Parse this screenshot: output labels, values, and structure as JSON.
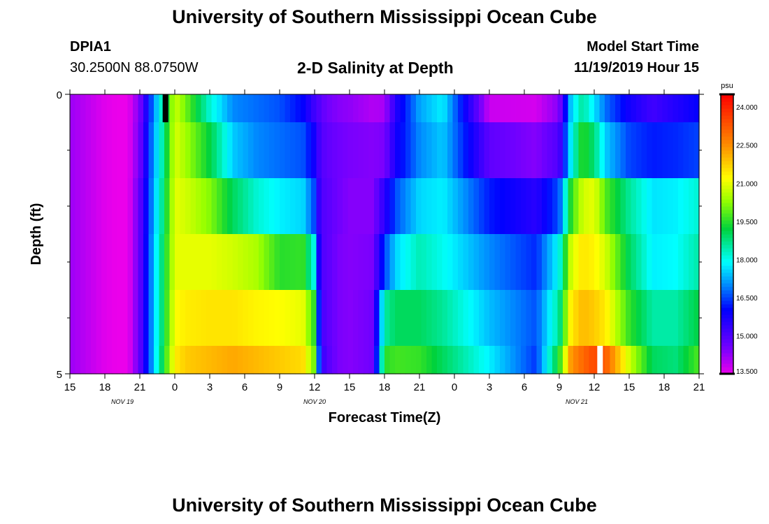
{
  "page": {
    "title": "University of Southern Mississippi Ocean Cube",
    "footer_title": "University of Southern Mississippi Ocean Cube",
    "station_id": "DPIA1",
    "station_coords": "30.2500N 88.0750W",
    "plot_title": "2-D Salinity at Depth",
    "model_start_label": "Model Start Time",
    "model_start_value": "11/19/2019 Hour 15"
  },
  "chart_data": {
    "type": "heatmap",
    "title": "2-D Salinity at Depth",
    "xlabel": "Forecast Time(Z)",
    "ylabel": "Depth (ft)",
    "x_tick_labels": [
      "15",
      "18",
      "21",
      "0",
      "3",
      "6",
      "9",
      "12",
      "15",
      "18",
      "21",
      "0",
      "3",
      "6",
      "9",
      "12",
      "15",
      "18",
      "21"
    ],
    "x_range_hours": [
      0,
      54
    ],
    "date_labels": [
      {
        "text": "NOV 19",
        "hour": 4.5
      },
      {
        "text": "NOV 20",
        "hour": 21
      },
      {
        "text": "NOV 21",
        "hour": 43.5
      }
    ],
    "y_tick_labels": [
      {
        "text": "0",
        "depth": 0
      },
      {
        "text": "5",
        "depth": 5
      }
    ],
    "y_range": [
      0,
      5
    ],
    "depth_layers": [
      0,
      0.5,
      1.5,
      2.5,
      3.5,
      4.5,
      5
    ],
    "colorbar": {
      "unit": "psu",
      "min": 13.5,
      "max": 24.5,
      "tick_labels": [
        "24.000",
        "22.500",
        "21.000",
        "19.500",
        "18.000",
        "16.500",
        "15.000",
        "13.500"
      ],
      "tick_values": [
        24.0,
        22.5,
        21.0,
        19.5,
        18.0,
        16.5,
        15.0,
        13.5
      ]
    },
    "time_hours": [
      0,
      3,
      4,
      4.5,
      5,
      6,
      7,
      8,
      9,
      10,
      12,
      14,
      16,
      18,
      20,
      21,
      21.5,
      22,
      23,
      24,
      26,
      27,
      28,
      30,
      32,
      36,
      40,
      42,
      43,
      44,
      45,
      46,
      48,
      50,
      52,
      54
    ],
    "salinity_by_layer": [
      [
        14.2,
        13.6,
        13.5,
        13.5,
        13.5,
        14.5,
        16.6,
        18.5,
        20.8,
        20.0,
        18.2,
        17.0,
        16.8,
        16.6,
        16.0,
        15.2,
        14.9,
        14.6,
        14.4,
        14.3,
        14.0,
        14.1,
        15.6,
        17.2,
        17.8,
        13.8,
        13.7,
        14.4,
        17.5,
        18.6,
        17.7,
        16.8,
        15.8,
        15.2,
        15.6,
        16.0
      ],
      [
        14.2,
        13.6,
        13.5,
        13.5,
        13.5,
        14.6,
        16.8,
        18.6,
        20.9,
        20.4,
        19.2,
        17.5,
        17.0,
        16.8,
        16.6,
        15.8,
        15.0,
        14.8,
        14.6,
        14.5,
        14.4,
        14.5,
        15.8,
        17.0,
        17.5,
        14.8,
        14.4,
        15.0,
        17.8,
        19.6,
        18.8,
        17.5,
        16.5,
        16.2,
        16.3,
        16.5
      ],
      [
        14.2,
        13.6,
        13.5,
        13.5,
        13.5,
        14.8,
        16.9,
        18.8,
        21.0,
        20.8,
        20.2,
        19.0,
        18.2,
        17.8,
        17.6,
        16.5,
        15.0,
        14.9,
        14.6,
        14.4,
        14.4,
        15.5,
        16.6,
        17.6,
        17.8,
        16.2,
        15.5,
        16.6,
        19.5,
        20.8,
        21.0,
        19.8,
        18.6,
        17.7,
        17.8,
        18.2
      ],
      [
        14.2,
        13.6,
        13.5,
        13.5,
        13.5,
        14.8,
        17.0,
        19.0,
        21.0,
        21.0,
        21.0,
        20.8,
        20.5,
        19.5,
        19.6,
        18.0,
        15.0,
        14.9,
        14.5,
        14.4,
        14.5,
        16.5,
        17.6,
        18.4,
        18.0,
        17.0,
        16.3,
        18.0,
        20.8,
        21.5,
        21.3,
        20.8,
        19.0,
        17.8,
        17.9,
        18.5
      ],
      [
        14.2,
        13.6,
        13.5,
        13.5,
        13.5,
        14.8,
        17.0,
        19.0,
        21.2,
        21.4,
        21.5,
        21.5,
        21.3,
        21.2,
        21.0,
        19.5,
        15.2,
        14.9,
        14.5,
        14.4,
        14.6,
        18.5,
        19.0,
        19.0,
        18.6,
        17.4,
        16.6,
        18.6,
        21.4,
        22.0,
        21.8,
        21.4,
        19.6,
        18.5,
        18.5,
        19.2
      ],
      [
        14.2,
        13.6,
        13.5,
        13.5,
        13.5,
        14.8,
        17.0,
        19.2,
        21.4,
        21.8,
        22.0,
        22.2,
        22.0,
        21.8,
        21.6,
        20.0,
        15.5,
        15.0,
        14.5,
        14.4,
        14.6,
        19.5,
        19.7,
        19.6,
        19.0,
        17.8,
        16.4,
        19.5,
        22.4,
        23.0,
        23.5,
        23.2,
        20.8,
        19.0,
        18.8,
        19.8
      ]
    ],
    "markers": [
      {
        "color": "#000000",
        "hour": 8.2,
        "depth_top": 0,
        "depth_bottom": 0.5
      },
      {
        "color": "#ffffff",
        "hour": 45.5,
        "depth_top": 4.5,
        "depth_bottom": 5
      }
    ]
  }
}
